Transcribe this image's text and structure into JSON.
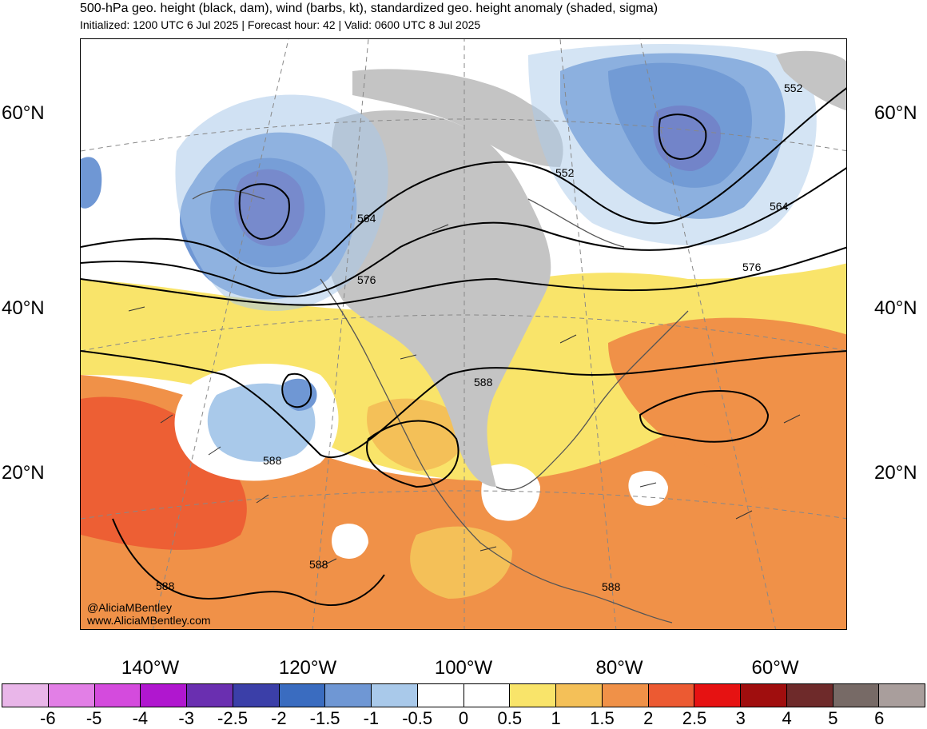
{
  "header": {
    "title": "500-hPa geo. height (black, dam), wind (barbs, kt), standardized geo. height anomaly (shaded, sigma)",
    "subtitle": "Initialized: 1200 UTC 6 Jul 2025 | Forecast hour: 42 | Valid: 0600 UTC 8 Jul 2025"
  },
  "axes": {
    "lat_labels": [
      "60°N",
      "40°N",
      "20°N"
    ],
    "lon_labels": [
      "140°W",
      "120°W",
      "100°W",
      "80°W",
      "60°W"
    ]
  },
  "contour_labels": [
    "552",
    "552",
    "564",
    "564",
    "576",
    "576",
    "588",
    "588",
    "588",
    "588",
    "588"
  ],
  "credit": {
    "handle": "@AliciaMBentley",
    "site": "www.AliciaMBentley.com"
  },
  "colorbar": {
    "ticks": [
      "-6",
      "-5",
      "-4",
      "-3",
      "-2.5",
      "-2",
      "-1.5",
      "-1",
      "-0.5",
      "0",
      "0.5",
      "1",
      "1.5",
      "2",
      "2.5",
      "3",
      "4",
      "5",
      "6"
    ],
    "colors": [
      "#e9b6e9",
      "#e27fe6",
      "#d44bdd",
      "#b017cf",
      "#6a2fb0",
      "#3b3fa8",
      "#3a6cc0",
      "#6f97d4",
      "#a9c9ea",
      "#ffffff",
      "#ffffff",
      "#f9e46a",
      "#f4c058",
      "#f09148",
      "#ec5a32",
      "#e61212",
      "#a00e0e",
      "#6e2a2a",
      "#776a66",
      "#a99e9c"
    ]
  },
  "colors": {
    "land_gray": "#c4c4c4",
    "coast": "#555555",
    "contour": "#000000"
  }
}
